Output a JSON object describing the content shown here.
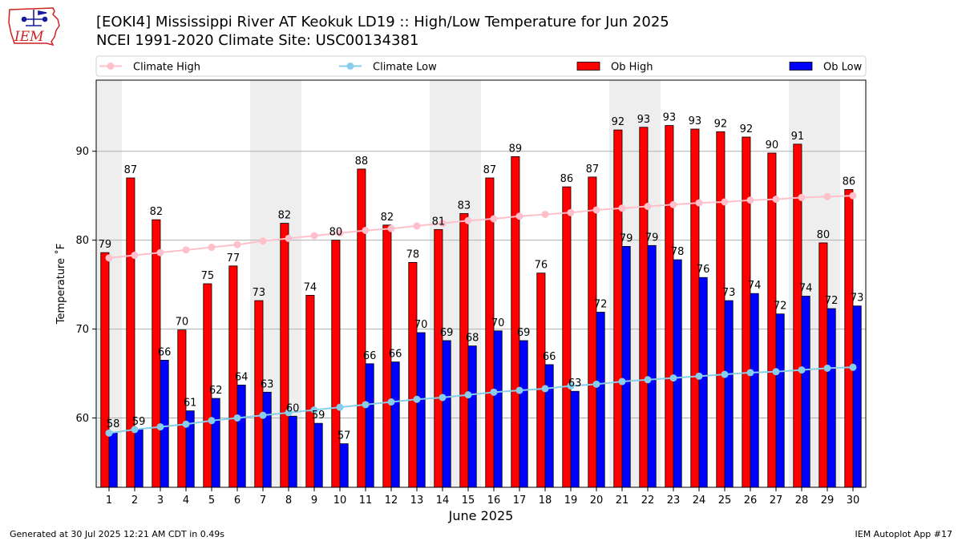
{
  "header": {
    "logo_text": "IEM",
    "title_line1": "[EOKI4] Mississippi River  AT Keokuk LD19 :: High/Low Temperature for Jun 2025",
    "title_line2": "NCEI 1991-2020 Climate Site: USC00134381"
  },
  "footer": {
    "generated": "Generated at 30 Jul 2025 12:21 AM CDT in 0.49s",
    "app": "IEM Autoplot App #17"
  },
  "colors": {
    "ob_high": "#ff0000",
    "ob_low": "#0000ff",
    "climate_high": "#ffc0cb",
    "climate_low": "#87ceeb",
    "weekend_shade": "#eeeeee",
    "grid": "#b0b0b0",
    "logo_red": "#d02020",
    "logo_blue": "#1a1aa0"
  },
  "chart_data": {
    "type": "bar",
    "xlabel": "June 2025",
    "ylabel": "Temperature ˚F",
    "ylim": [
      52.2,
      98
    ],
    "yticks": [
      60,
      70,
      80,
      90
    ],
    "grid": "y",
    "legend_position": "top",
    "categories": [
      1,
      2,
      3,
      4,
      5,
      6,
      7,
      8,
      9,
      10,
      11,
      12,
      13,
      14,
      15,
      16,
      17,
      18,
      19,
      20,
      21,
      22,
      23,
      24,
      25,
      26,
      27,
      28,
      29,
      30
    ],
    "weekend_days": [
      1,
      7,
      8,
      14,
      15,
      21,
      22,
      28,
      29
    ],
    "series": [
      {
        "name": "Climate High",
        "kind": "line",
        "values": [
          78.0,
          78.3,
          78.6,
          78.9,
          79.2,
          79.5,
          79.9,
          80.2,
          80.5,
          80.8,
          81.1,
          81.3,
          81.6,
          81.9,
          82.2,
          82.4,
          82.7,
          82.9,
          83.1,
          83.4,
          83.6,
          83.8,
          84.0,
          84.2,
          84.3,
          84.5,
          84.6,
          84.8,
          84.9,
          85.0
        ]
      },
      {
        "name": "Climate Low",
        "kind": "line",
        "values": [
          58.3,
          58.7,
          59.0,
          59.3,
          59.7,
          60.0,
          60.3,
          60.6,
          60.9,
          61.2,
          61.5,
          61.8,
          62.1,
          62.3,
          62.6,
          62.9,
          63.1,
          63.3,
          63.6,
          63.8,
          64.1,
          64.3,
          64.5,
          64.7,
          64.9,
          65.1,
          65.2,
          65.4,
          65.6,
          65.7
        ]
      },
      {
        "name": "Ob High",
        "kind": "bar",
        "values": [
          78.6,
          87.0,
          82.3,
          69.9,
          75.1,
          77.1,
          73.2,
          81.9,
          73.8,
          80.0,
          88.0,
          81.7,
          77.5,
          81.2,
          83.0,
          87.0,
          89.4,
          76.3,
          86.0,
          87.1,
          92.4,
          92.7,
          92.9,
          92.5,
          92.2,
          91.6,
          89.8,
          90.8,
          79.7,
          85.7
        ],
        "labels": [
          "79",
          "87",
          "82",
          "70",
          "75",
          "77",
          "73",
          "82",
          "74",
          "80",
          "88",
          "82",
          "78",
          "81",
          "83",
          "87",
          "89",
          "76",
          "86",
          "87",
          "92",
          "93",
          "93",
          "93",
          "92",
          "92",
          "90",
          "91",
          "80",
          "86"
        ]
      },
      {
        "name": "Ob Low",
        "kind": "bar",
        "values": [
          58.4,
          58.7,
          66.5,
          60.8,
          62.2,
          63.7,
          62.9,
          60.2,
          59.4,
          57.1,
          66.1,
          66.3,
          69.6,
          68.7,
          68.1,
          69.8,
          68.7,
          66.0,
          63.0,
          71.9,
          79.3,
          79.4,
          77.8,
          75.8,
          73.2,
          74.0,
          71.7,
          73.7,
          72.3,
          72.6
        ],
        "labels": [
          "58",
          "59",
          "66",
          "61",
          "62",
          "64",
          "63",
          "60",
          "59",
          "57",
          "66",
          "66",
          "70",
          "69",
          "68",
          "70",
          "69",
          "66",
          "63",
          "72",
          "79",
          "79",
          "78",
          "76",
          "73",
          "74",
          "72",
          "74",
          "72",
          "73"
        ]
      }
    ]
  }
}
